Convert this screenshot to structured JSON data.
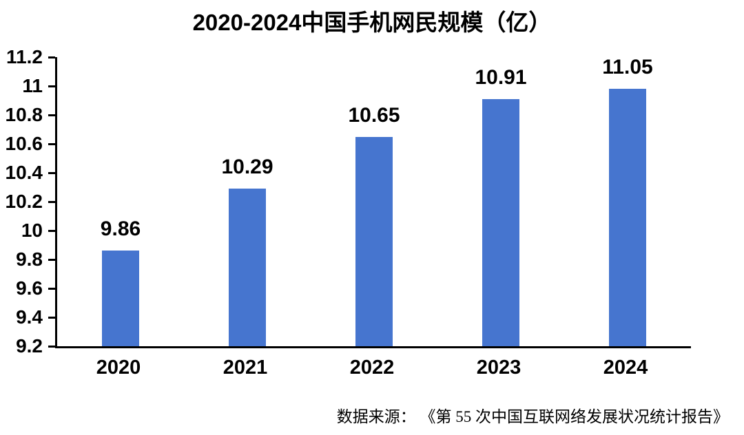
{
  "chart_data": {
    "type": "bar",
    "title": "2020-2024中国手机网民规模（亿）",
    "categories": [
      "2020",
      "2021",
      "2022",
      "2023",
      "2024"
    ],
    "values": [
      9.86,
      10.29,
      10.65,
      10.91,
      11.05
    ],
    "value_labels": [
      "9.86",
      "10.29",
      "10.65",
      "10.91",
      "11.05"
    ],
    "xlabel": "",
    "ylabel": "",
    "ylim": [
      9.2,
      11.2
    ],
    "ytick_step": 0.2,
    "ytick_labels": [
      "11.2",
      "11",
      "10.8",
      "10.6",
      "10.4",
      "10.2",
      "10",
      "9.8",
      "9.6",
      "9.4",
      "9.2"
    ],
    "grid": false,
    "legend_position": "none",
    "bar_color": "#4675CF",
    "axis_color": "#000000",
    "label_color": "#000000"
  },
  "source": {
    "text": "数据来源： 《第 55 次中国互联网络发展状况统计报告》"
  }
}
